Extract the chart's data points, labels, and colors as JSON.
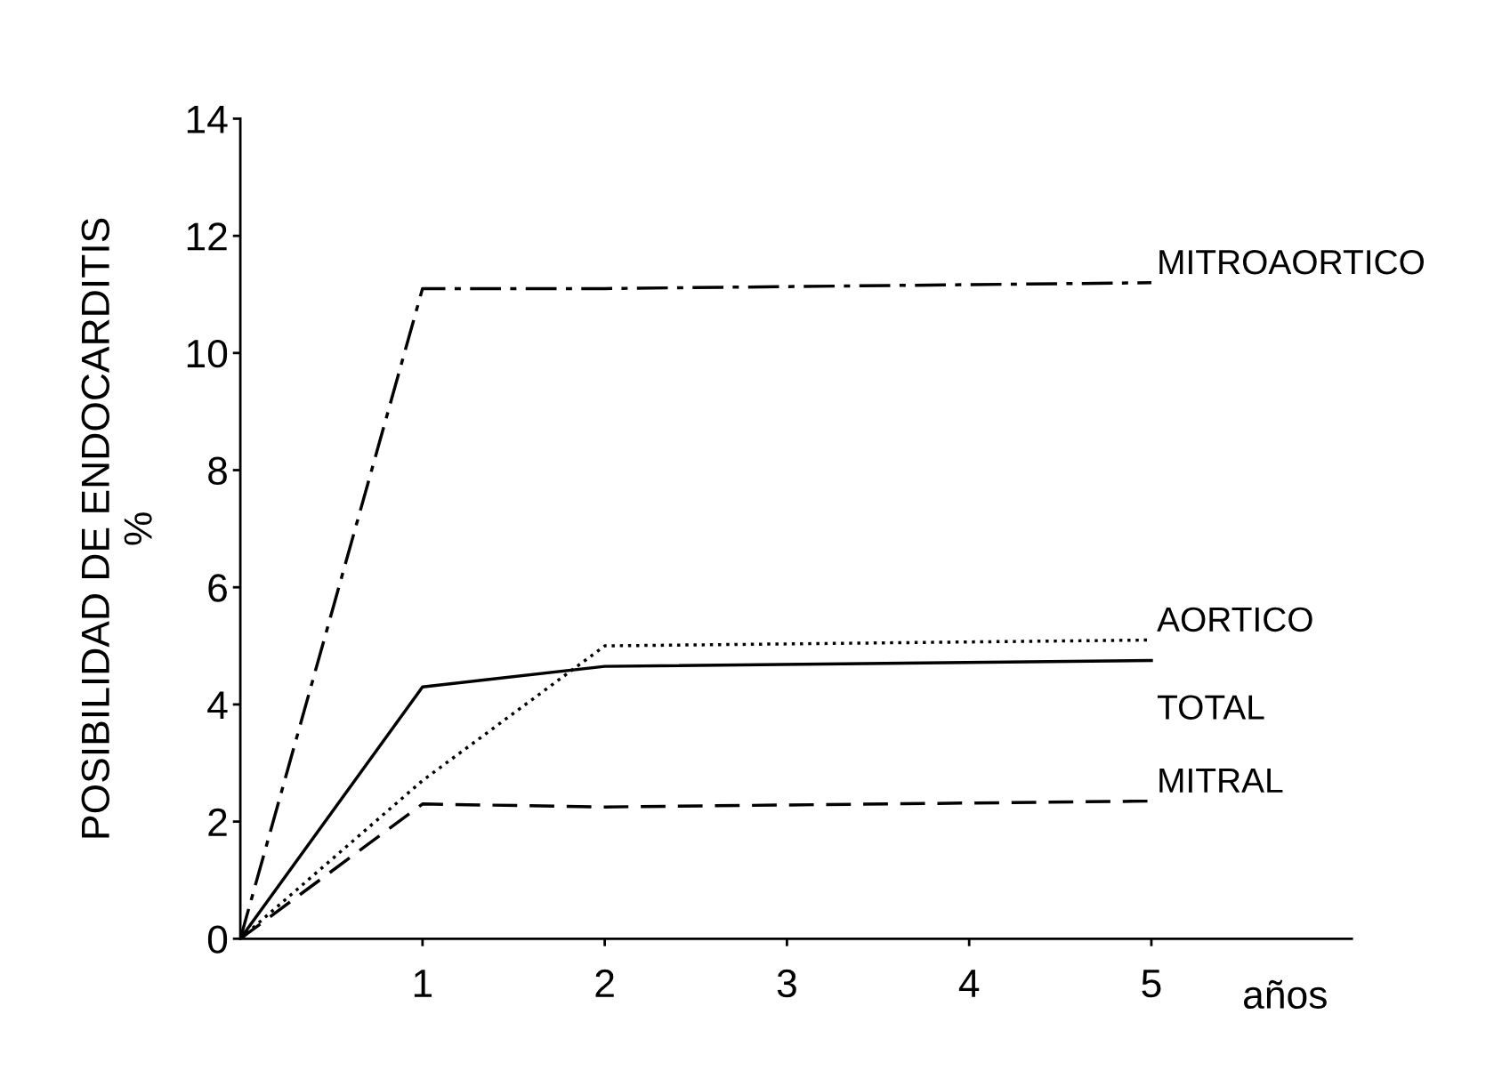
{
  "chart_data": {
    "type": "line",
    "xlabel": "años",
    "ylabel": "POSIBILIDAD DE ENDOCARDITIS\n%",
    "x": [
      0,
      1,
      2,
      5
    ],
    "series": [
      {
        "name": "MITROAORTICO",
        "color": "#000000",
        "line_style": "dashdot",
        "values": [
          0,
          11.1,
          11.1,
          11.2
        ]
      },
      {
        "name": "AORTICO",
        "color": "#000000",
        "line_style": "dotted",
        "values": [
          0,
          2.7,
          5.0,
          5.1
        ]
      },
      {
        "name": "TOTAL",
        "color": "#000000",
        "line_style": "solid",
        "values": [
          0,
          4.3,
          4.65,
          4.75
        ]
      },
      {
        "name": "MITRAL",
        "color": "#000000",
        "line_style": "dashed",
        "values": [
          0,
          2.3,
          2.25,
          2.35
        ]
      }
    ],
    "xlim": [
      0,
      6.1
    ],
    "xticks": [
      1,
      2,
      3,
      4,
      5
    ],
    "ylim": [
      0,
      14
    ],
    "yticks": [
      0,
      2,
      4,
      6,
      8,
      10,
      12,
      14
    ],
    "grid": false,
    "legend": false,
    "marker": "none"
  }
}
